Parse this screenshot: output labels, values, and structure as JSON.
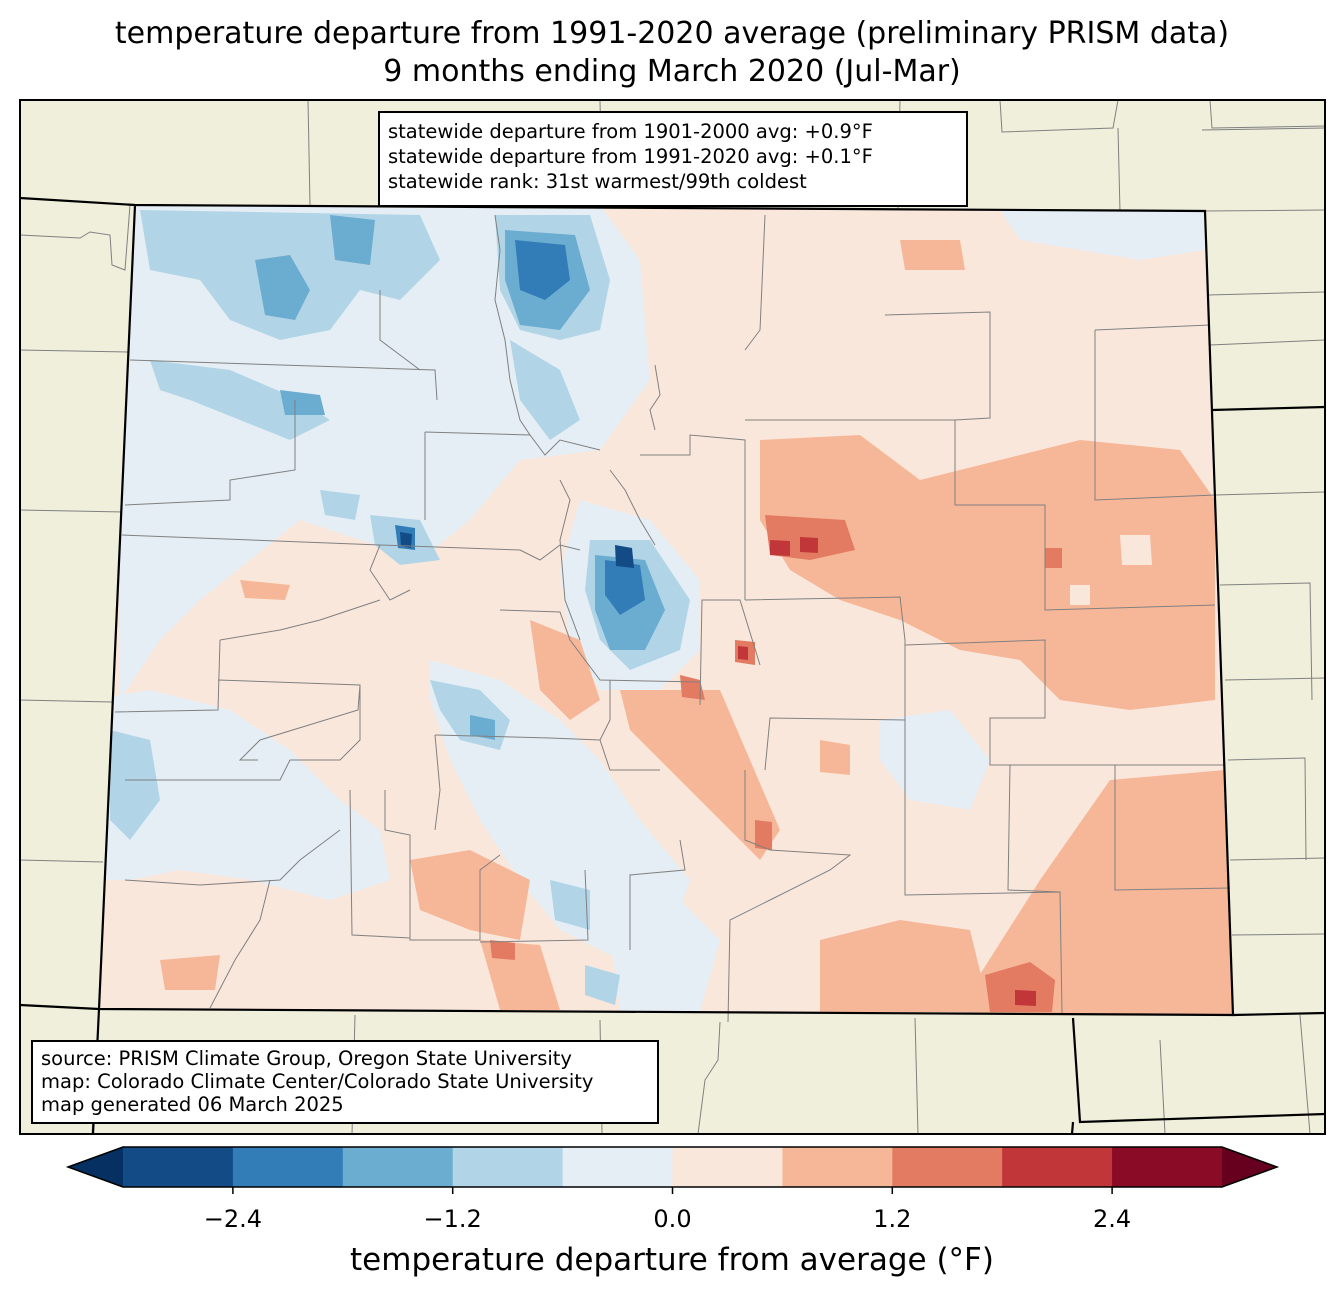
{
  "title": {
    "line1": "temperature departure from 1991-2020 average (preliminary PRISM data)",
    "line2": "9 months ending March 2020 (Jul-Mar)"
  },
  "stats": {
    "line1": "statewide departure from 1901-2000 avg: +0.9°F",
    "line2": "statewide departure from 1991-2020 avg: +0.1°F",
    "line3": "statewide rank: 31st warmest/99th coldest"
  },
  "source": {
    "line1": "source: PRISM Climate Group, Oregon State University",
    "line2": "map: Colorado Climate Center/Colorado State University",
    "line3": "map generated 06 March 2025"
  },
  "colorbar": {
    "label": "temperature departure from average (°F)",
    "min": -3.0,
    "max": 3.0,
    "step": 0.6,
    "ticks": [
      {
        "value": -2.4,
        "label": "−2.4"
      },
      {
        "value": -1.2,
        "label": "−1.2"
      },
      {
        "value": 0.0,
        "label": "0.0"
      },
      {
        "value": 1.2,
        "label": "1.2"
      },
      {
        "value": 2.4,
        "label": "2.4"
      }
    ],
    "under_color": "#053061",
    "over_color": "#67001f",
    "colors": [
      "#134b87",
      "#327cb7",
      "#6bacd1",
      "#b1d5e7",
      "#e5eef4",
      "#fae7dc",
      "#f6b799",
      "#e27b62",
      "#c13639",
      "#8a0b25"
    ]
  },
  "map_colors": {
    "land": "#efefdc",
    "state_border": "#000000",
    "county_border": "#808080"
  }
}
